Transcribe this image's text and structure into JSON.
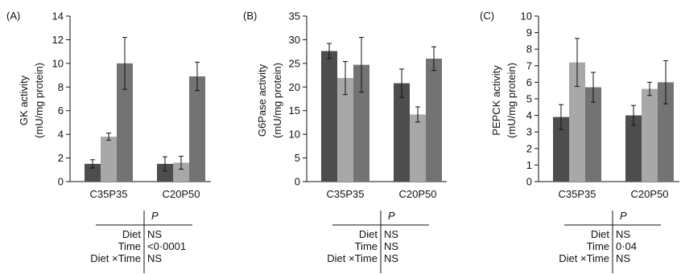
{
  "colors": {
    "bar_dark": "#4d4d4d",
    "bar_light": "#a8a8a8",
    "bar_mid": "#737373",
    "axis": "#111111"
  },
  "chart_data": [
    {
      "type": "bar",
      "panel": "(A)",
      "ylabel_line1": "GK activity",
      "ylabel_line2": "(mU/mg protein)",
      "ylim": [
        0,
        14
      ],
      "yticks": [
        "0",
        "2",
        "4",
        "6",
        "8",
        "10",
        "12",
        "14"
      ],
      "categories": [
        "C35P35",
        "C20P50"
      ],
      "series": [
        {
          "values": [
            1.5,
            1.5
          ],
          "errors": [
            0.35,
            0.6
          ]
        },
        {
          "values": [
            3.8,
            1.6
          ],
          "errors": [
            0.3,
            0.55
          ]
        },
        {
          "values": [
            10.0,
            8.9
          ],
          "errors": [
            2.2,
            1.2
          ]
        }
      ],
      "stats": {
        "header": "P",
        "rows": [
          {
            "label": "Diet",
            "value": "NS"
          },
          {
            "label": "Time",
            "value": "<0·0001"
          },
          {
            "label": "Diet ×Time",
            "value": "NS"
          }
        ]
      }
    },
    {
      "type": "bar",
      "panel": "(B)",
      "ylabel_line1": "G6Pase activity",
      "ylabel_line2": "(mU/mg protein)",
      "ylim": [
        0,
        35
      ],
      "yticks": [
        "0",
        "5",
        "10",
        "15",
        "20",
        "25",
        "30",
        "35"
      ],
      "categories": [
        "C35P35",
        "C20P50"
      ],
      "series": [
        {
          "values": [
            27.6,
            20.8
          ],
          "errors": [
            1.6,
            3.0
          ]
        },
        {
          "values": [
            21.9,
            14.2
          ],
          "errors": [
            3.5,
            1.6
          ]
        },
        {
          "values": [
            24.7,
            26.0
          ],
          "errors": [
            5.8,
            2.5
          ]
        }
      ],
      "stats": {
        "header": "P",
        "rows": [
          {
            "label": "Diet",
            "value": "NS"
          },
          {
            "label": "Time",
            "value": "NS"
          },
          {
            "label": "Diet ×Time",
            "value": "NS"
          }
        ]
      }
    },
    {
      "type": "bar",
      "panel": "(C)",
      "ylabel_line1": "PEPCK activity",
      "ylabel_line2": "(mU/mg protein)",
      "ylim": [
        0,
        10
      ],
      "yticks": [
        "0",
        "1",
        "2",
        "3",
        "4",
        "5",
        "6",
        "7",
        "8",
        "9",
        "10"
      ],
      "categories": [
        "C35P35",
        "C20P50"
      ],
      "series": [
        {
          "values": [
            3.9,
            4.0
          ],
          "errors": [
            0.75,
            0.6
          ]
        },
        {
          "values": [
            7.2,
            5.6
          ],
          "errors": [
            1.45,
            0.4
          ]
        },
        {
          "values": [
            5.7,
            6.0
          ],
          "errors": [
            0.9,
            1.3
          ]
        }
      ],
      "stats": {
        "header": "P",
        "rows": [
          {
            "label": "Diet",
            "value": "NS"
          },
          {
            "label": "Time",
            "value": "0·04"
          },
          {
            "label": "Diet ×Time",
            "value": "NS"
          }
        ]
      }
    }
  ]
}
